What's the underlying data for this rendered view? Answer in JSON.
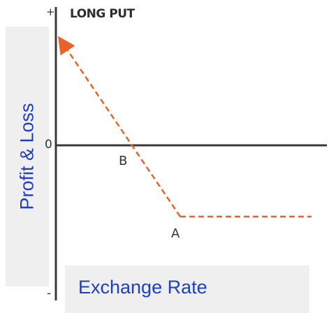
{
  "title": "LONG PUT",
  "y_axis": {
    "label": "Profit & Loss",
    "top_tick": "+",
    "zero_tick": "0",
    "bottom_tick": "-"
  },
  "x_axis": {
    "label": "Exchange Rate"
  },
  "points": {
    "break_even": "B",
    "strike": "A"
  },
  "colors": {
    "payoff_line": "#e8622a",
    "axis": "#3a3a3a",
    "label_text": "#1f3fbf",
    "label_box": "#efefef"
  }
}
